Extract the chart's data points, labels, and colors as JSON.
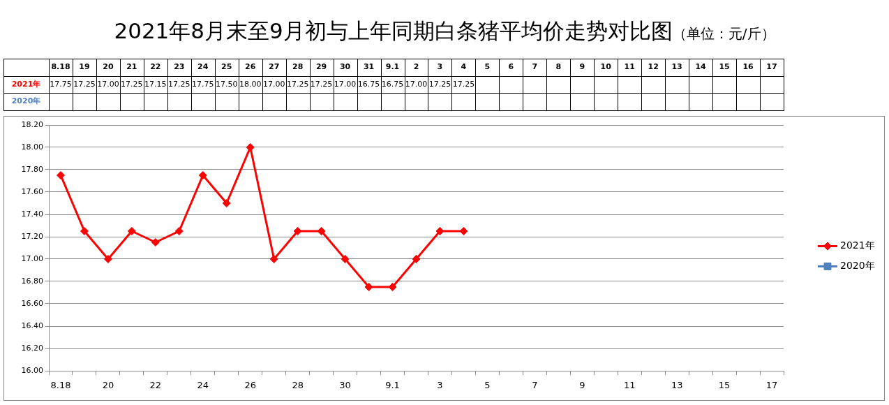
{
  "chart_data": {
    "type": "line",
    "title": "2021年8月末至9月初与上年同期白条猪平均价走势对比图",
    "subtitle": "（单位：元/斤）",
    "categories": [
      "8.18",
      "19",
      "20",
      "21",
      "22",
      "23",
      "24",
      "25",
      "26",
      "27",
      "28",
      "29",
      "30",
      "31",
      "9.1",
      "2",
      "3",
      "4",
      "5",
      "6",
      "7",
      "8",
      "9",
      "10",
      "11",
      "12",
      "13",
      "14",
      "15",
      "16",
      "17"
    ],
    "series": [
      {
        "name": "2021年",
        "color": "#ff0000",
        "marker": "diamond",
        "values": [
          17.75,
          17.25,
          17,
          17.25,
          17.15,
          17.25,
          17.75,
          17.5,
          18,
          17,
          17.25,
          17.25,
          17,
          16.75,
          16.75,
          17,
          17.25,
          17.25,
          null,
          null,
          null,
          null,
          null,
          null,
          null,
          null,
          null,
          null,
          null,
          null,
          null
        ],
        "value_labels": [
          "17.75",
          "17.25",
          "17.00",
          "17.25",
          "17.15",
          "17.25",
          "17.75",
          "17.50",
          "18.00",
          "17.00",
          "17.25",
          "17.25",
          "17.00",
          "16.75",
          "16.75",
          "17.00",
          "17.25",
          "17.25",
          null,
          null,
          null,
          null,
          null,
          null,
          null,
          null,
          null,
          null,
          null,
          null,
          null
        ]
      },
      {
        "name": "2020年",
        "color": "#4f81bd",
        "marker": "square",
        "values": [
          null,
          null,
          null,
          null,
          null,
          null,
          null,
          null,
          null,
          null,
          null,
          null,
          null,
          null,
          null,
          null,
          null,
          null,
          null,
          null,
          null,
          null,
          null,
          null,
          null,
          null,
          null,
          null,
          null,
          null,
          null
        ],
        "value_labels": [
          null,
          null,
          null,
          null,
          null,
          null,
          null,
          null,
          null,
          null,
          null,
          null,
          null,
          null,
          null,
          null,
          null,
          null,
          null,
          null,
          null,
          null,
          null,
          null,
          null,
          null,
          null,
          null,
          null,
          null,
          null
        ]
      }
    ],
    "ylim": [
      16,
      18.2
    ],
    "yticks": [
      {
        "value": 16,
        "label": "16.00"
      },
      {
        "value": 16.2,
        "label": "16.20"
      },
      {
        "value": 16.4,
        "label": "16.40"
      },
      {
        "value": 16.6,
        "label": "16.60"
      },
      {
        "value": 16.8,
        "label": "16.80"
      },
      {
        "value": 17,
        "label": "17.00"
      },
      {
        "value": 17.2,
        "label": "17.20"
      },
      {
        "value": 17.4,
        "label": "17.40"
      },
      {
        "value": 17.6,
        "label": "17.60"
      },
      {
        "value": 17.8,
        "label": "17.80"
      },
      {
        "value": 18,
        "label": "18.00"
      },
      {
        "value": 18.2,
        "label": "18.20"
      }
    ],
    "grid": "y",
    "legend": "right"
  }
}
